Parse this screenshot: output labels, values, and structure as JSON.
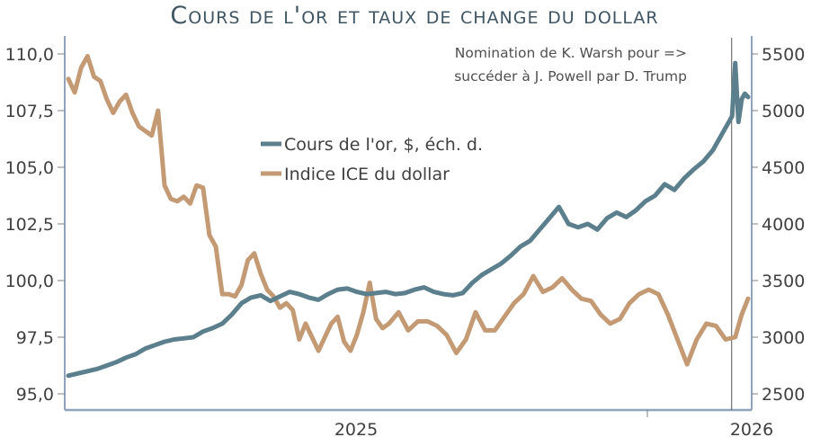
{
  "title": "Cours de l'or et taux de change du dollar",
  "chart_data": {
    "type": "line",
    "title": "Cours de l'or et taux de change du dollar",
    "xlabel": "",
    "ylabel_left": "",
    "ylabel_right": "",
    "x_range": [
      2024.0,
      2026.12
    ],
    "x_tick_labels": [
      {
        "label": "2025",
        "x": 2025.0
      },
      {
        "label": "2026",
        "x": 2026.0
      }
    ],
    "left_axis": {
      "ylim": [
        95.0,
        110.0
      ],
      "ticks": [
        "95,0",
        "97,5",
        "100,0",
        "102,5",
        "105,0",
        "107,5",
        "110,0"
      ],
      "tick_values": [
        95.0,
        97.5,
        100.0,
        102.5,
        105.0,
        107.5,
        110.0
      ]
    },
    "right_axis": {
      "ylim": [
        2500,
        5500
      ],
      "ticks": [
        "2500",
        "3000",
        "3500",
        "4000",
        "4500",
        "5000",
        "5500"
      ],
      "tick_values": [
        2500,
        3000,
        3500,
        4000,
        4500,
        5000,
        5500
      ]
    },
    "grid": false,
    "legend": {
      "placement": "center-top",
      "entries": [
        {
          "label": "Cours de l'or, $, éch. d.",
          "color": "#5b7f8c"
        },
        {
          "label": "Indice ICE du dollar",
          "color": "#c49a74"
        }
      ]
    },
    "annotation": {
      "line1": "Nomination de K. Warsh pour =>",
      "line2": "succéder à J. Powell par D. Trump",
      "x": 2026.08
    },
    "series": [
      {
        "name": "Cours de l'or, $, éch. d.",
        "axis": "right",
        "color": "#5b7f8c",
        "x": [
          2024.0,
          2024.03,
          2024.06,
          2024.09,
          2024.12,
          2024.15,
          2024.18,
          2024.21,
          2024.24,
          2024.27,
          2024.3,
          2024.33,
          2024.36,
          2024.39,
          2024.42,
          2024.45,
          2024.48,
          2024.51,
          2024.54,
          2024.57,
          2024.6,
          2024.63,
          2024.66,
          2024.69,
          2024.72,
          2024.75,
          2024.78,
          2024.81,
          2024.84,
          2024.87,
          2024.9,
          2024.93,
          2024.96,
          2024.99,
          2025.02,
          2025.05,
          2025.08,
          2025.11,
          2025.14,
          2025.17,
          2025.2,
          2025.23,
          2025.26,
          2025.29,
          2025.32,
          2025.35,
          2025.38,
          2025.41,
          2025.44,
          2025.47,
          2025.5,
          2025.53,
          2025.56,
          2025.59,
          2025.62,
          2025.65,
          2025.68,
          2025.71,
          2025.74,
          2025.77,
          2025.8,
          2025.83,
          2025.86,
          2025.89,
          2025.92,
          2025.95,
          2025.98,
          2026.01,
          2026.04,
          2026.07,
          2026.08,
          2026.09,
          2026.1,
          2026.11,
          2026.12
        ],
        "values": [
          2660,
          2680,
          2700,
          2720,
          2750,
          2780,
          2820,
          2850,
          2900,
          2930,
          2960,
          2980,
          2990,
          3000,
          3050,
          3080,
          3120,
          3200,
          3300,
          3350,
          3370,
          3320,
          3360,
          3400,
          3380,
          3350,
          3330,
          3380,
          3420,
          3430,
          3400,
          3380,
          3390,
          3400,
          3380,
          3390,
          3420,
          3440,
          3400,
          3380,
          3370,
          3390,
          3480,
          3550,
          3600,
          3650,
          3720,
          3800,
          3850,
          3950,
          4050,
          4150,
          4000,
          3970,
          4000,
          3950,
          4050,
          4100,
          4060,
          4120,
          4200,
          4250,
          4350,
          4300,
          4400,
          4480,
          4550,
          4650,
          4800,
          4950,
          5420,
          4900,
          5100,
          5150,
          5120
        ]
      },
      {
        "name": "Indice ICE du dollar",
        "axis": "left",
        "color": "#c49a74",
        "x": [
          2024.0,
          2024.02,
          2024.04,
          2024.06,
          2024.08,
          2024.1,
          2024.12,
          2024.14,
          2024.16,
          2024.18,
          2024.2,
          2024.22,
          2024.24,
          2024.26,
          2024.28,
          2024.3,
          2024.32,
          2024.34,
          2024.36,
          2024.38,
          2024.4,
          2024.42,
          2024.44,
          2024.46,
          2024.48,
          2024.5,
          2024.52,
          2024.54,
          2024.56,
          2024.58,
          2024.6,
          2024.62,
          2024.64,
          2024.66,
          2024.68,
          2024.7,
          2024.72,
          2024.74,
          2024.76,
          2024.78,
          2024.8,
          2024.82,
          2024.84,
          2024.86,
          2024.88,
          2024.9,
          2024.92,
          2024.94,
          2024.96,
          2024.98,
          2025.0,
          2025.03,
          2025.06,
          2025.09,
          2025.12,
          2025.15,
          2025.18,
          2025.21,
          2025.24,
          2025.27,
          2025.3,
          2025.33,
          2025.36,
          2025.39,
          2025.42,
          2025.45,
          2025.48,
          2025.51,
          2025.54,
          2025.57,
          2025.6,
          2025.63,
          2025.66,
          2025.69,
          2025.72,
          2025.75,
          2025.78,
          2025.81,
          2025.84,
          2025.87,
          2025.9,
          2025.93,
          2025.96,
          2025.99,
          2026.02,
          2026.05,
          2026.08,
          2026.1,
          2026.12
        ],
        "values": [
          108.9,
          108.3,
          109.4,
          109.9,
          109.0,
          108.8,
          108.0,
          107.4,
          107.9,
          108.2,
          107.4,
          106.8,
          106.6,
          106.4,
          107.5,
          104.2,
          103.6,
          103.5,
          103.7,
          103.4,
          104.2,
          104.1,
          102.0,
          101.5,
          99.4,
          99.4,
          99.3,
          99.8,
          100.9,
          101.2,
          100.3,
          99.6,
          99.3,
          98.8,
          99.0,
          98.7,
          97.4,
          98.1,
          97.5,
          96.9,
          97.5,
          98.1,
          98.4,
          97.3,
          96.9,
          97.6,
          98.6,
          99.9,
          98.3,
          97.9,
          98.1,
          98.6,
          97.8,
          98.2,
          98.2,
          98.0,
          97.6,
          96.8,
          97.4,
          98.6,
          97.8,
          97.8,
          98.4,
          99.0,
          99.4,
          100.2,
          99.5,
          99.7,
          100.1,
          99.6,
          99.2,
          99.1,
          98.5,
          98.1,
          98.3,
          99.0,
          99.4,
          99.6,
          99.4,
          98.5,
          97.4,
          96.3,
          97.4,
          98.1,
          98.0,
          97.4,
          97.5,
          98.5,
          99.2
        ]
      }
    ]
  }
}
